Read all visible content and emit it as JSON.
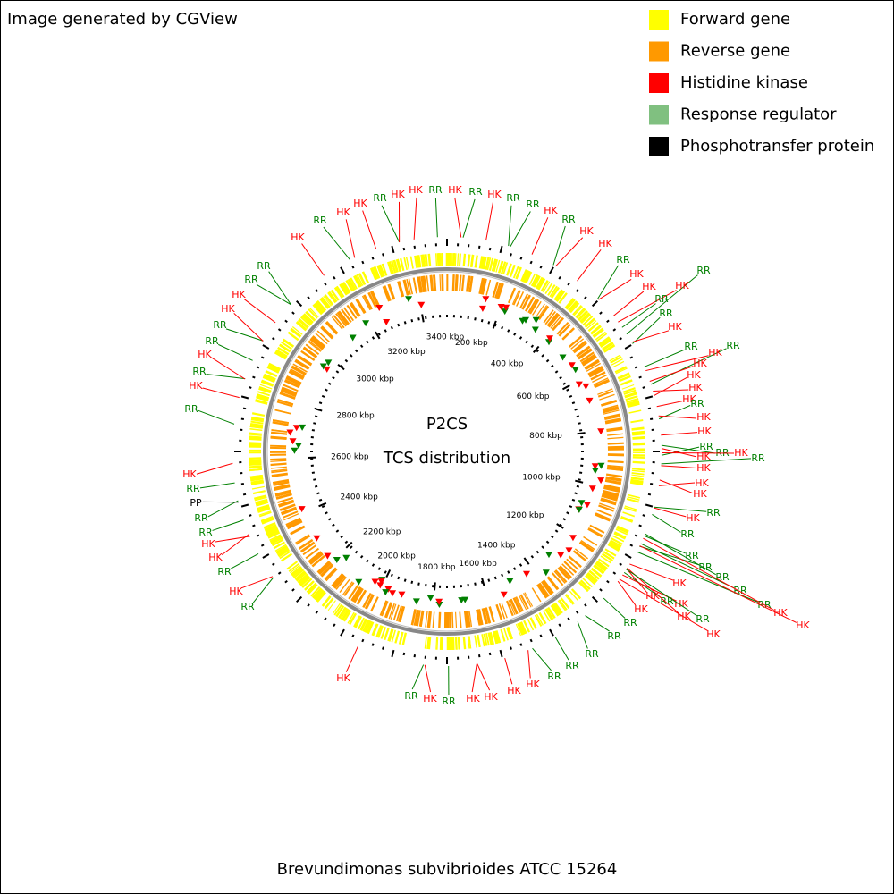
{
  "header": {
    "credit": "Image generated by CGView"
  },
  "legend": [
    {
      "label": "Forward gene",
      "color": "#ffff00"
    },
    {
      "label": "Reverse gene",
      "color": "#ff9900"
    },
    {
      "label": "Histidine kinase",
      "color": "#ff0000"
    },
    {
      "label": "Response regulator",
      "color": "#80c080"
    },
    {
      "label": "Phosphotransfer protein",
      "color": "#000000"
    }
  ],
  "center": {
    "title": "P2CS",
    "subtitle": "TCS distribution"
  },
  "ruler_labels": [
    "200 kbp",
    "400 kbp",
    "600 kbp",
    "800 kbp",
    "1000 kbp",
    "1200 kbp",
    "1400 kbp",
    "1600 kbp",
    "1800 kbp",
    "2000 kbp",
    "2200 kbp",
    "2400 kbp",
    "2600 kbp",
    "2800 kbp",
    "3000 kbp",
    "3200 kbp",
    "3400 kbp"
  ],
  "feature_colors": {
    "HK": "#ff0000",
    "RR": "#008000",
    "PP": "#000000"
  },
  "features": [
    "HK",
    "RR",
    "HK",
    "RR",
    "HK",
    "RR",
    "RR",
    "HK",
    "RR",
    "HK",
    "HK",
    "RR",
    "HK",
    "HK",
    "RR",
    "HK",
    "RR",
    "RR",
    "HK",
    "RR",
    "RR",
    "HK",
    "HK",
    "HK",
    "HK",
    "HK",
    "RR",
    "HK",
    "HK",
    "RR",
    "RR",
    "HK",
    "RR",
    "HK",
    "HK",
    "HK",
    "HK",
    "HK",
    "RR",
    "RR",
    "RR",
    "RR",
    "RR",
    "RR",
    "RR",
    "HK",
    "HK",
    "HK",
    "HK",
    "RR",
    "HK",
    "HK",
    "RR",
    "HK",
    "HK",
    "RR",
    "RR",
    "RR",
    "RR",
    "RR",
    "HK",
    "HK",
    "HK",
    "HK",
    "RR",
    "HK",
    "RR",
    "HK",
    "RR",
    "HK",
    "RR",
    "HK",
    "HK",
    "RR",
    "RR",
    "PP",
    "RR",
    "HK",
    "RR",
    "HK",
    "RR",
    "HK",
    "RR",
    "RR",
    "HK",
    "HK",
    "RR",
    "RR",
    "HK",
    "RR",
    "HK",
    "HK",
    "RR",
    "HK"
  ],
  "footer": "Brevundimonas subvibrioides ATCC 15264"
}
